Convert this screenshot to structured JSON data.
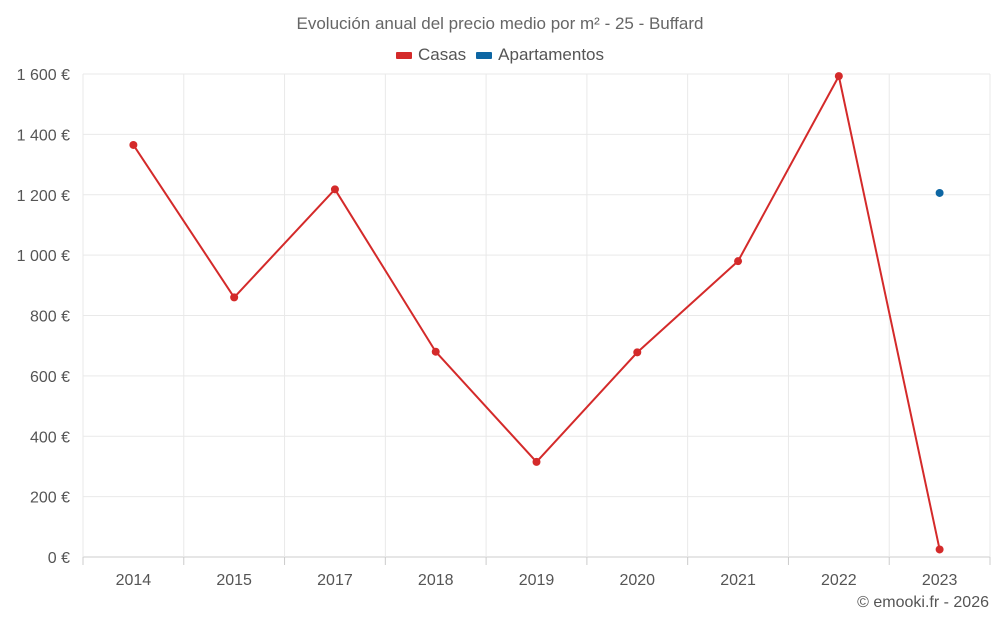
{
  "chart_data": {
    "type": "line",
    "title": "Evolución anual del precio medio por m² - 25 - Buffard",
    "categories": [
      "2014",
      "2015",
      "2017",
      "2018",
      "2019",
      "2020",
      "2021",
      "2022",
      "2023"
    ],
    "ylim": [
      0,
      1600
    ],
    "yticks": [
      0,
      200,
      400,
      600,
      800,
      1000,
      1200,
      1400,
      1600
    ],
    "ytick_labels": [
      "0 €",
      "200 €",
      "400 €",
      "600 €",
      "800 €",
      "1 000 €",
      "1 200 €",
      "1 400 €",
      "1 600 €"
    ],
    "grid": true,
    "legend_position": "top-center",
    "series": [
      {
        "name": "Casas",
        "color": "#d42a2a",
        "values": [
          1365,
          860,
          1218,
          680,
          315,
          678,
          980,
          1593,
          25
        ]
      },
      {
        "name": "Apartamentos",
        "color": "#0d66a3",
        "values": [
          null,
          null,
          null,
          null,
          null,
          null,
          null,
          null,
          1206
        ]
      }
    ]
  },
  "credits": "© emooki.fr - 2026"
}
